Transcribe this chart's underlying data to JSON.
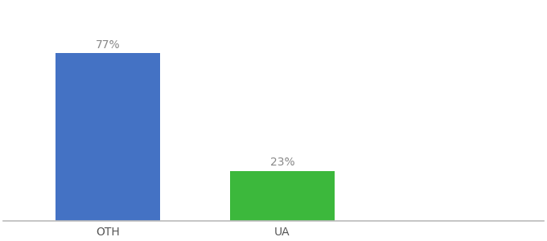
{
  "categories": [
    "OTH",
    "UA"
  ],
  "values": [
    77,
    23
  ],
  "bar_colors": [
    "#4472c4",
    "#3cb83c"
  ],
  "label_texts": [
    "77%",
    "23%"
  ],
  "label_color": "#888888",
  "label_fontsize": 10,
  "tick_fontsize": 10,
  "tick_color": "#555555",
  "background_color": "#ffffff",
  "ylim": [
    0,
    100
  ],
  "bar_width": 0.6,
  "spine_color": "#bbbbbb",
  "x_positions": [
    0,
    1
  ],
  "xlim": [
    -0.6,
    2.5
  ]
}
